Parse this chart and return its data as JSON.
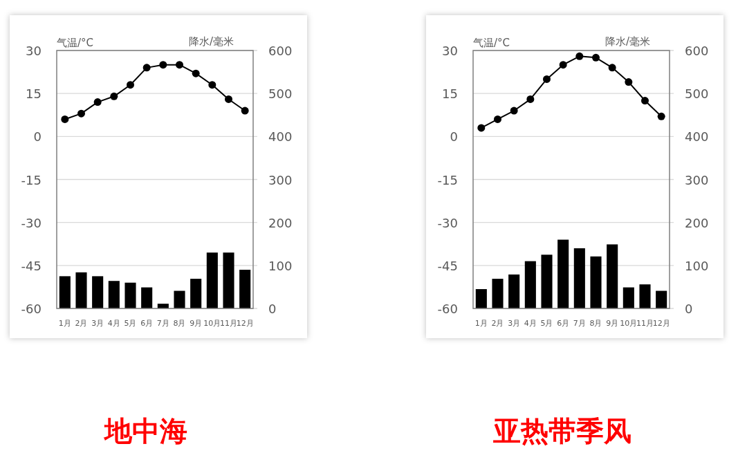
{
  "chart_data": [
    {
      "type": "bar",
      "title": "地中海",
      "ylabel": "气温/°C",
      "y2label": "降水/毫米",
      "categories": [
        "1月",
        "2月",
        "3月",
        "4月",
        "5月",
        "6月",
        "7月",
        "8月",
        "9月",
        "10月",
        "11月",
        "12月"
      ],
      "ylim": [
        -60,
        30
      ],
      "yticks": [
        -60,
        -45,
        -30,
        -15,
        0,
        15,
        30
      ],
      "y2lim": [
        0,
        600
      ],
      "y2ticks": [
        0,
        100,
        200,
        300,
        400,
        500,
        600
      ],
      "grid": "y",
      "marker": "circle",
      "series": [
        {
          "axis": "y2",
          "color": "#000000",
          "values": [
            75,
            84,
            75,
            64,
            60,
            49,
            11,
            41,
            69,
            130,
            130,
            90
          ]
        },
        {
          "type": "line",
          "axis": "y",
          "color": "#000000",
          "values": [
            6,
            8,
            12,
            14,
            18,
            24,
            25,
            25,
            22,
            18,
            13,
            9
          ]
        }
      ]
    },
    {
      "type": "bar",
      "title": "亚热带季风",
      "ylabel": "气温/°C",
      "y2label": "降水/毫米",
      "categories": [
        "1月",
        "2月",
        "3月",
        "4月",
        "5月",
        "6月",
        "7月",
        "8月",
        "9月",
        "10月",
        "11月",
        "12月"
      ],
      "ylim": [
        -60,
        30
      ],
      "yticks": [
        -60,
        -45,
        -30,
        -15,
        0,
        15,
        30
      ],
      "y2lim": [
        0,
        600
      ],
      "y2ticks": [
        0,
        100,
        200,
        300,
        400,
        500,
        600
      ],
      "grid": "y",
      "marker": "circle",
      "series": [
        {
          "axis": "y2",
          "color": "#000000",
          "values": [
            45,
            69,
            79,
            110,
            125,
            160,
            140,
            121,
            149,
            49,
            56,
            41
          ]
        },
        {
          "type": "line",
          "axis": "y",
          "color": "#000000",
          "values": [
            3,
            6,
            9,
            13,
            20,
            25,
            28,
            27.5,
            24,
            19,
            12.5,
            7
          ]
        }
      ]
    }
  ]
}
